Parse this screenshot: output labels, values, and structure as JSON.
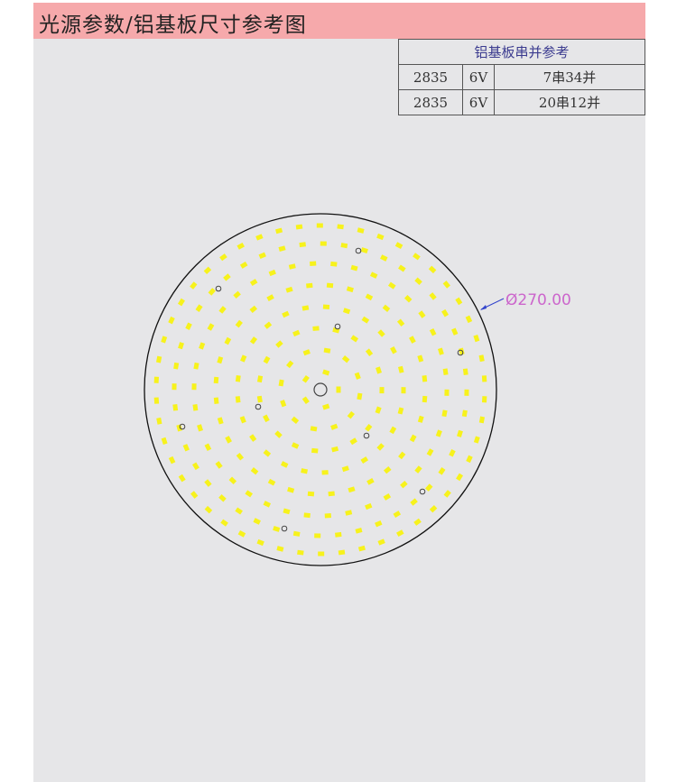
{
  "header": {
    "title": "光源参数/铝基板尺寸参考图"
  },
  "table": {
    "title": "铝基板串并参考",
    "rows": [
      {
        "led": "2835",
        "voltage": "6V",
        "config": "7串34并"
      },
      {
        "led": "2835",
        "voltage": "6V",
        "config": "20串12并"
      }
    ]
  },
  "drawing": {
    "diameter_label": "Ø270.00",
    "led_color": "#f7f21c",
    "dimension_color": "#cc66cc"
  }
}
